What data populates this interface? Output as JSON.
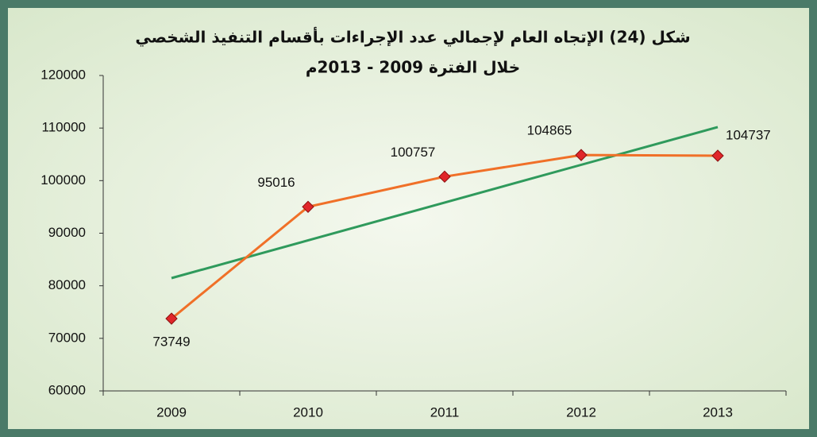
{
  "chart_data": {
    "type": "line",
    "title": "شكل (24) الإتجاه العام لإجمالي عدد الإجراءات بأقسام التنفيذ الشخصي",
    "subtitle": "خلال الفترة 2009 - 2013م",
    "categories": [
      "2009",
      "2010",
      "2011",
      "2012",
      "2013"
    ],
    "series": [
      {
        "color": "#f07028",
        "marker_color": "#e0262a",
        "values": [
          73749,
          95016,
          100757,
          104865,
          104737
        ]
      }
    ],
    "trendline": true,
    "trendline_color": "#2f9a5c",
    "ylim": [
      60000,
      120000
    ],
    "yticks": [
      60000,
      70000,
      80000,
      90000,
      100000,
      110000,
      120000
    ],
    "grid": false
  }
}
